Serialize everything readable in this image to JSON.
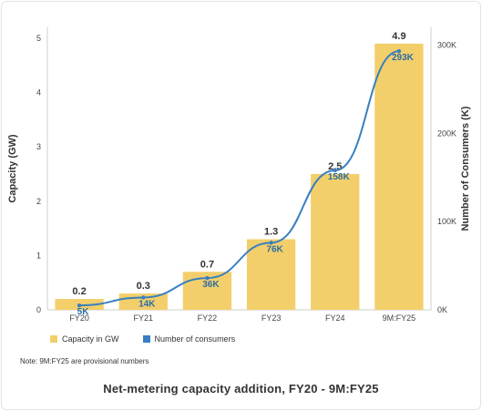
{
  "chart_data": {
    "type": "bar",
    "title": "Net-metering capacity addition, FY20 - 9M:FY25",
    "note": "Note: 9M:FY25 are provisional numbers",
    "categories": [
      "FY20",
      "FY21",
      "FY22",
      "FY23",
      "FY24",
      "9M:FY25"
    ],
    "series": [
      {
        "name": "Capacity in GW",
        "type": "bar",
        "axis": "left",
        "color": "#f2cf6b",
        "values": [
          0.2,
          0.3,
          0.7,
          1.3,
          2.5,
          4.9
        ],
        "labels": [
          "0.2",
          "0.3",
          "0.7",
          "1.3",
          "2.5",
          "4.9"
        ]
      },
      {
        "name": "Number of consumers",
        "type": "line",
        "axis": "right",
        "color": "#3a7fbf",
        "values": [
          5,
          14,
          36,
          76,
          158,
          293
        ],
        "labels": [
          "5K",
          "14K",
          "36K",
          "76K",
          "158K",
          "293K"
        ]
      }
    ],
    "ylabel": "Capacity (GW)",
    "y2label": "Number of Consumers (K)",
    "ylim": [
      0,
      5.2
    ],
    "y2lim": [
      0,
      320
    ],
    "yticks": [
      "0",
      "1",
      "2",
      "3",
      "4",
      "5"
    ],
    "y2ticks": [
      "0K",
      "100K",
      "200K",
      "300K"
    ],
    "grid": false,
    "legend_position": "bottom-left"
  }
}
